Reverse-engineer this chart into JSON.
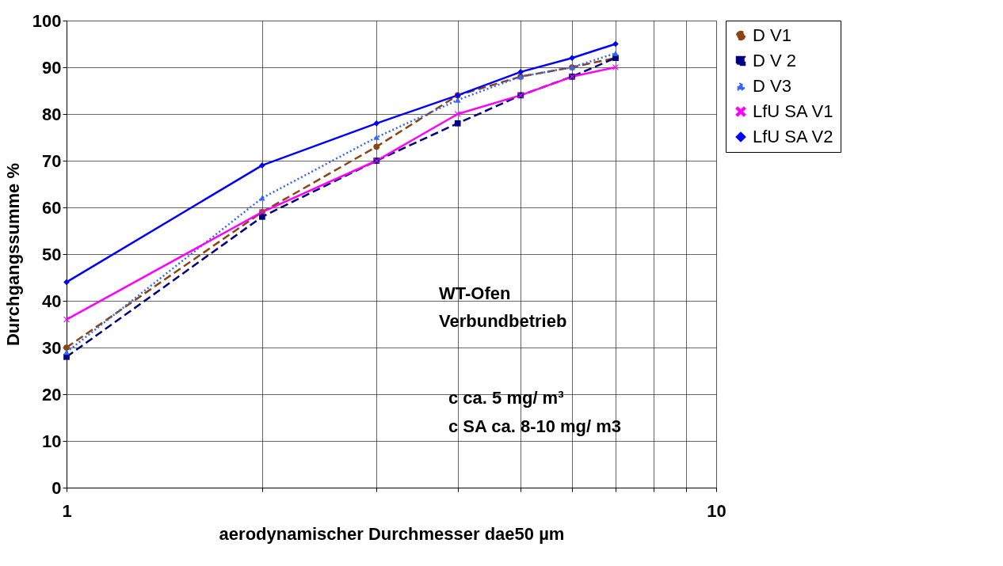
{
  "chart_data": {
    "type": "line",
    "xlabel": "aerodynamischer Durchmesser dae50 µm",
    "ylabel": "Durchgangssumme %",
    "x": [
      1,
      2,
      3,
      4,
      5,
      6,
      7
    ],
    "series": [
      {
        "name": "D V1",
        "color": "#8b4513",
        "line_style": "dashed",
        "marker": "circle",
        "values": [
          30,
          59,
          73,
          84,
          88,
          90,
          92
        ]
      },
      {
        "name": "D V 2",
        "color": "#000080",
        "line_style": "dashed",
        "marker": "square",
        "values": [
          28,
          58,
          70,
          78,
          84,
          88,
          92
        ]
      },
      {
        "name": "D V3",
        "color": "#3366ff",
        "line_style": "dotted",
        "marker": "triangle",
        "values": [
          29,
          62,
          75,
          83,
          88,
          90,
          93
        ]
      },
      {
        "name": "LfU SA V1",
        "color": "#ff00ff",
        "line_style": "solid",
        "marker": "cross",
        "values": [
          36,
          59,
          70,
          80,
          84,
          88,
          90
        ]
      },
      {
        "name": "LfU SA V2",
        "color": "#0000ff",
        "line_style": "solid",
        "marker": "diamond",
        "values": [
          44,
          69,
          78,
          84,
          89,
          92,
          95
        ]
      }
    ],
    "log": "x",
    "xlim": [
      1,
      10
    ],
    "xticks": [
      1,
      {
        "value": 2,
        "label": null
      },
      {
        "value": 3,
        "label": null
      },
      {
        "value": 4,
        "label": null
      },
      {
        "value": 5,
        "label": null
      },
      {
        "value": 6,
        "label": null
      },
      {
        "value": 7,
        "label": null
      },
      {
        "value": 8,
        "label": null
      },
      {
        "value": 9,
        "label": null
      },
      10
    ],
    "ylim": [
      0,
      100
    ],
    "yticks": [
      0,
      10,
      20,
      30,
      40,
      50,
      60,
      70,
      80,
      90,
      100
    ],
    "grid": true,
    "legend": "right",
    "annotations": [
      "WT-Ofen",
      "Verbundbetrieb",
      "c ca. 5 mg/ m³",
      "c SA ca.  8-10 mg/ m3"
    ]
  }
}
